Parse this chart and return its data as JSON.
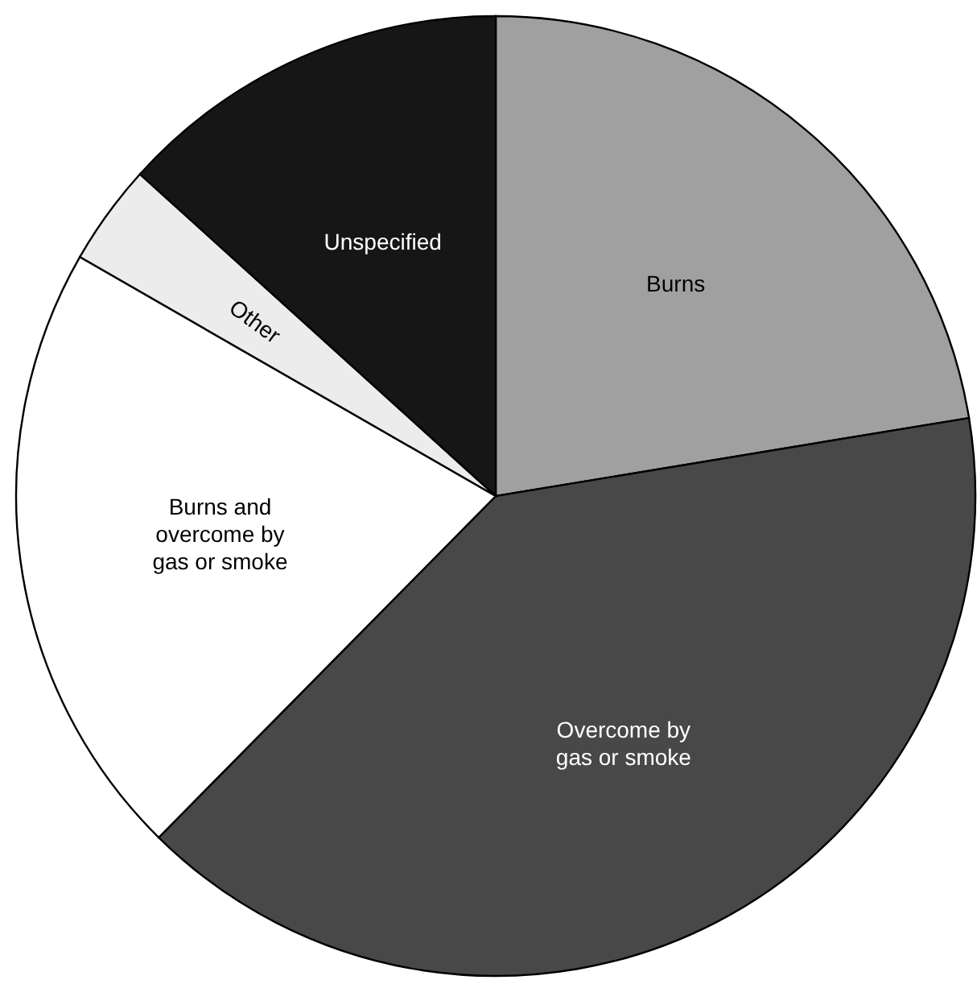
{
  "chart_data": {
    "type": "pie",
    "categories": [
      "Burns",
      "Overcome by gas or smoke",
      "Burns and overcome by gas or smoke",
      "Other",
      "Unspecified"
    ],
    "values": [
      22.4,
      40,
      20.9,
      3.4,
      13.3
    ],
    "colors": [
      "#a0a0a0",
      "#484848",
      "#ffffff",
      "#ececec",
      "#161616"
    ]
  }
}
